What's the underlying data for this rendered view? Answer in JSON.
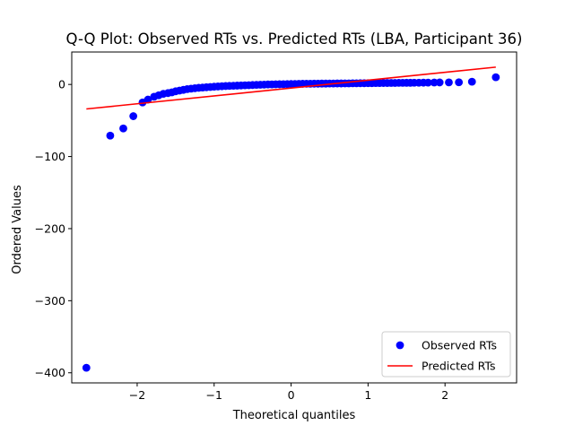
{
  "chart_data": {
    "type": "scatter",
    "title": "Q-Q Plot: Observed RTs vs. Predicted RTs (LBA, Participant 36)",
    "xlabel": "Theoretical quantiles",
    "ylabel": "Ordered Values",
    "xlim": [
      -2.85,
      2.93
    ],
    "ylim": [
      -414,
      45
    ],
    "xticks": [
      {
        "value": -2,
        "label": "−2"
      },
      {
        "value": -1,
        "label": "−1"
      },
      {
        "value": 0,
        "label": "0"
      },
      {
        "value": 1,
        "label": "1"
      },
      {
        "value": 2,
        "label": "2"
      }
    ],
    "yticks": [
      {
        "value": 0,
        "label": "0"
      },
      {
        "value": -100,
        "label": "−100"
      },
      {
        "value": -200,
        "label": "−200"
      },
      {
        "value": -300,
        "label": "−300"
      },
      {
        "value": -400,
        "label": "−400"
      }
    ],
    "grid": false,
    "legend_position": "bottom-right",
    "series": [
      {
        "name": "Observed RTs",
        "kind": "points",
        "color": "#0000ff",
        "x": [
          -2.66,
          -2.35,
          -2.18,
          -2.05,
          -1.93,
          -1.86,
          -1.78,
          -1.72,
          -1.66,
          -1.6,
          -1.55,
          -1.5,
          -1.45,
          -1.4,
          -1.35,
          -1.3,
          -1.25,
          -1.2,
          -1.15,
          -1.1,
          -1.05,
          -1.0,
          -0.95,
          -0.9,
          -0.85,
          -0.8,
          -0.75,
          -0.7,
          -0.65,
          -0.6,
          -0.55,
          -0.5,
          -0.45,
          -0.4,
          -0.35,
          -0.3,
          -0.25,
          -0.2,
          -0.15,
          -0.1,
          -0.05,
          0.0,
          0.05,
          0.1,
          0.15,
          0.2,
          0.25,
          0.3,
          0.35,
          0.4,
          0.45,
          0.5,
          0.55,
          0.6,
          0.65,
          0.7,
          0.75,
          0.8,
          0.85,
          0.9,
          0.95,
          1.0,
          1.05,
          1.1,
          1.15,
          1.2,
          1.25,
          1.3,
          1.35,
          1.4,
          1.45,
          1.5,
          1.55,
          1.6,
          1.66,
          1.72,
          1.78,
          1.86,
          1.93,
          2.05,
          2.18,
          2.35,
          2.66
        ],
        "y": [
          -393,
          -71,
          -61,
          -44,
          -25,
          -21,
          -17,
          -15,
          -13,
          -12,
          -11,
          -9.5,
          -8.5,
          -7.5,
          -6.5,
          -5.8,
          -5.2,
          -4.7,
          -4.3,
          -3.9,
          -3.5,
          -3.1,
          -2.8,
          -2.5,
          -2.2,
          -2.0,
          -1.8,
          -1.6,
          -1.4,
          -1.2,
          -1.0,
          -0.8,
          -0.6,
          -0.4,
          -0.2,
          0.0,
          0.1,
          0.2,
          0.3,
          0.4,
          0.5,
          0.6,
          0.7,
          0.8,
          0.9,
          1.0,
          1.0,
          1.1,
          1.1,
          1.2,
          1.2,
          1.3,
          1.3,
          1.4,
          1.4,
          1.5,
          1.5,
          1.6,
          1.6,
          1.7,
          1.7,
          1.8,
          1.8,
          1.9,
          1.9,
          2.0,
          2.0,
          2.1,
          2.1,
          2.2,
          2.2,
          2.3,
          2.3,
          2.4,
          2.4,
          2.5,
          2.6,
          2.7,
          2.8,
          2.9,
          3.0,
          3.8,
          10
        ]
      },
      {
        "name": "Predicted RTs",
        "kind": "line",
        "color": "#ff0000",
        "x": [
          -2.66,
          2.66
        ],
        "y": [
          -34,
          24
        ]
      }
    ]
  }
}
